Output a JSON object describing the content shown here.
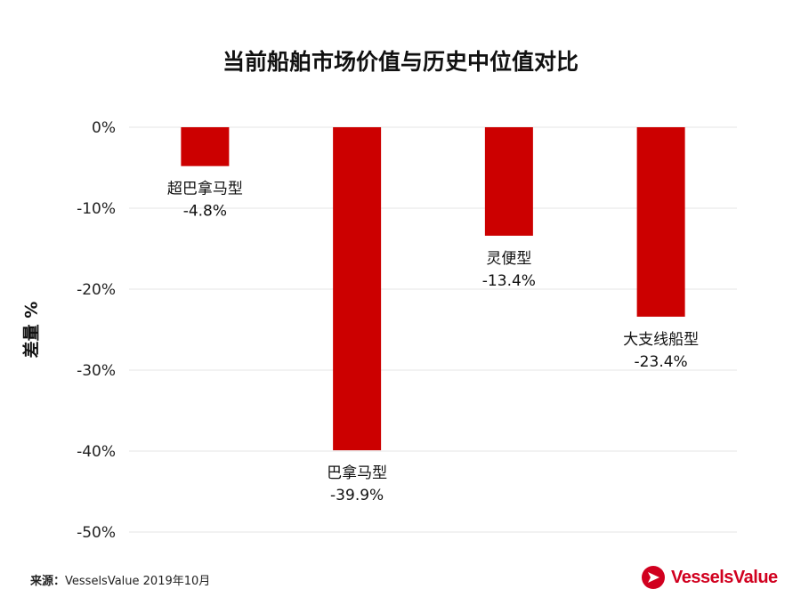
{
  "chart_data": {
    "type": "bar",
    "title": "当前船舶市场价值与历史中位值对比",
    "ylabel": "差量 %",
    "xlabel": "",
    "categories": [
      "超巴拿马型",
      "巴拿马型",
      "灵便型",
      "大支线船型"
    ],
    "values": [
      -4.8,
      -39.9,
      -13.4,
      -23.4
    ],
    "value_labels": [
      "-4.8%",
      "-39.9%",
      "-13.4%",
      "-23.4%"
    ],
    "ylim": [
      -50,
      0
    ],
    "yticks": [
      0,
      -10,
      -20,
      -30,
      -40,
      -50
    ],
    "ytick_labels": [
      "0%",
      "-10%",
      "-20%",
      "-30%",
      "-40%",
      "-50%"
    ],
    "grid": true,
    "bar_color": "#cc0000"
  },
  "source": {
    "key": "来源：",
    "text": "VesselsValue 2019年10月"
  },
  "brand": {
    "name": "VesselsValue",
    "color": "#d1001f"
  }
}
